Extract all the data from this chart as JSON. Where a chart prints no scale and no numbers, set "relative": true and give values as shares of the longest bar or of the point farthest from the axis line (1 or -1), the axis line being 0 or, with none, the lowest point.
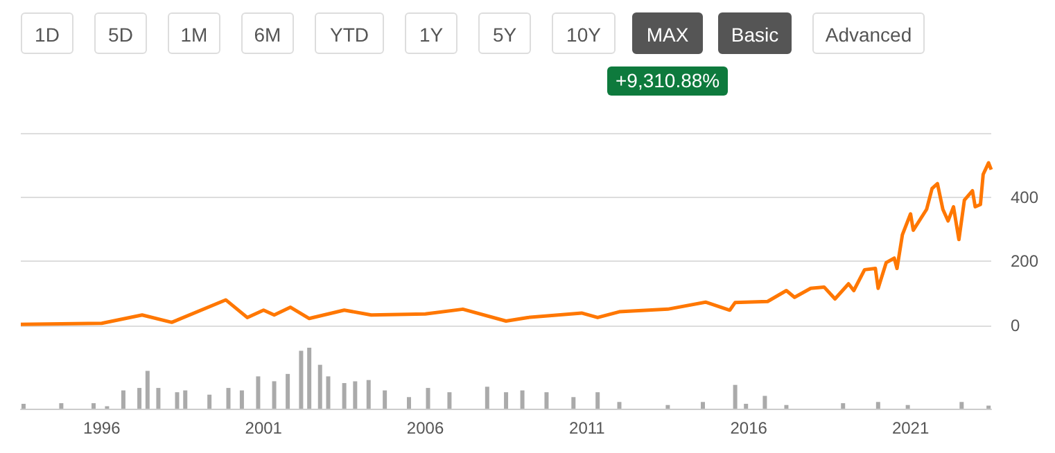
{
  "chart_data": [
    {
      "type": "line",
      "annotations": [
        "1D",
        "5D",
        "1M",
        "6M",
        "YTD",
        "1Y",
        "5Y",
        "10Y",
        "MAX",
        "Basic",
        "Advanced",
        "+9,310.88%"
      ],
      "x": [
        "1993-07",
        "1996-01",
        "1997-04",
        "1998-03",
        "1999-11",
        "2000-07",
        "2001-01",
        "2001-05",
        "2001-11",
        "2002-06",
        "2003-07",
        "2004-05",
        "2006-01",
        "2007-03",
        "2008-07",
        "2009-03",
        "2010-11",
        "2011-05",
        "2012-01",
        "2013-07",
        "2014-09",
        "2015-06",
        "2015-08",
        "2016-08",
        "2017-03",
        "2017-06",
        "2017-12",
        "2018-05",
        "2018-09",
        "2019-02",
        "2019-04",
        "2019-08",
        "2019-12",
        "2020-01",
        "2020-04",
        "2020-07",
        "2020-08",
        "2020-10",
        "2021-01",
        "2021-02",
        "2021-07",
        "2021-09",
        "2021-11",
        "2022-01",
        "2022-03",
        "2022-05",
        "2022-07",
        "2022-09",
        "2022-12",
        "2023-01",
        "2023-03",
        "2023-04",
        "2023-06",
        "2023-07"
      ],
      "series": [
        {
          "color": "#ff7700",
          "values": [
            4,
            7,
            33,
            10,
            80,
            25,
            48,
            33,
            57,
            22,
            48,
            33,
            36,
            51,
            14,
            25,
            39,
            25,
            43,
            51,
            73,
            48,
            72,
            75,
            109,
            88,
            116,
            120,
            83,
            130,
            109,
            174,
            178,
            116,
            196,
            210,
            178,
            283,
            348,
            297,
            362,
            427,
            442,
            362,
            326,
            370,
            268,
            391,
            420,
            370,
            377,
            471,
            507,
            486
          ]
        }
      ],
      "xlim": [
        "1993-07",
        "2023-07"
      ],
      "ylim": [
        0,
        600
      ],
      "yticks": [
        0,
        200,
        400,
        {
          "value": 600,
          "label": null
        }
      ],
      "grid": "y",
      "tick_labels": "y",
      "marker": "none"
    },
    {
      "type": "bar",
      "relative": true,
      "x": [
        "1993-08",
        "1994-10",
        "1995-10",
        "1996-03",
        "1996-09",
        "1997-03",
        "1997-06",
        "1997-10",
        "1998-05",
        "1998-08",
        "1999-05",
        "1999-12",
        "2000-05",
        "2000-11",
        "2001-05",
        "2001-10",
        "2002-03",
        "2002-06",
        "2002-10",
        "2003-01",
        "2003-07",
        "2003-11",
        "2004-04",
        "2004-10",
        "2005-07",
        "2006-02",
        "2006-10",
        "2007-12",
        "2008-07",
        "2009-01",
        "2009-10",
        "2010-08",
        "2011-05",
        "2012-01",
        "2013-07",
        "2014-08",
        "2015-08",
        "2015-12",
        "2016-07",
        "2017-03",
        "2018-12",
        "2020-01",
        "2020-12",
        "2022-08",
        "2023-06"
      ],
      "series": [
        {
          "color": "#aaaaaa",
          "values": [
            0.08,
            0.09,
            0.09,
            0.04,
            0.3,
            0.34,
            0.62,
            0.34,
            0.27,
            0.3,
            0.23,
            0.34,
            0.3,
            0.53,
            0.45,
            0.57,
            0.95,
            1,
            0.72,
            0.53,
            0.42,
            0.45,
            0.47,
            0.3,
            0.19,
            0.34,
            0.27,
            0.36,
            0.27,
            0.3,
            0.27,
            0.19,
            0.27,
            0.11,
            0.06,
            0.11,
            0.39,
            0.08,
            0.21,
            0.06,
            0.09,
            0.11,
            0.06,
            0.11,
            0.05
          ]
        }
      ],
      "xlim": [
        "1993-07",
        "2023-07"
      ],
      "xticks": [
        "1996",
        "2001",
        "2006",
        "2011",
        "2016",
        "2021"
      ],
      "tick_labels": "x",
      "grid": false
    }
  ]
}
